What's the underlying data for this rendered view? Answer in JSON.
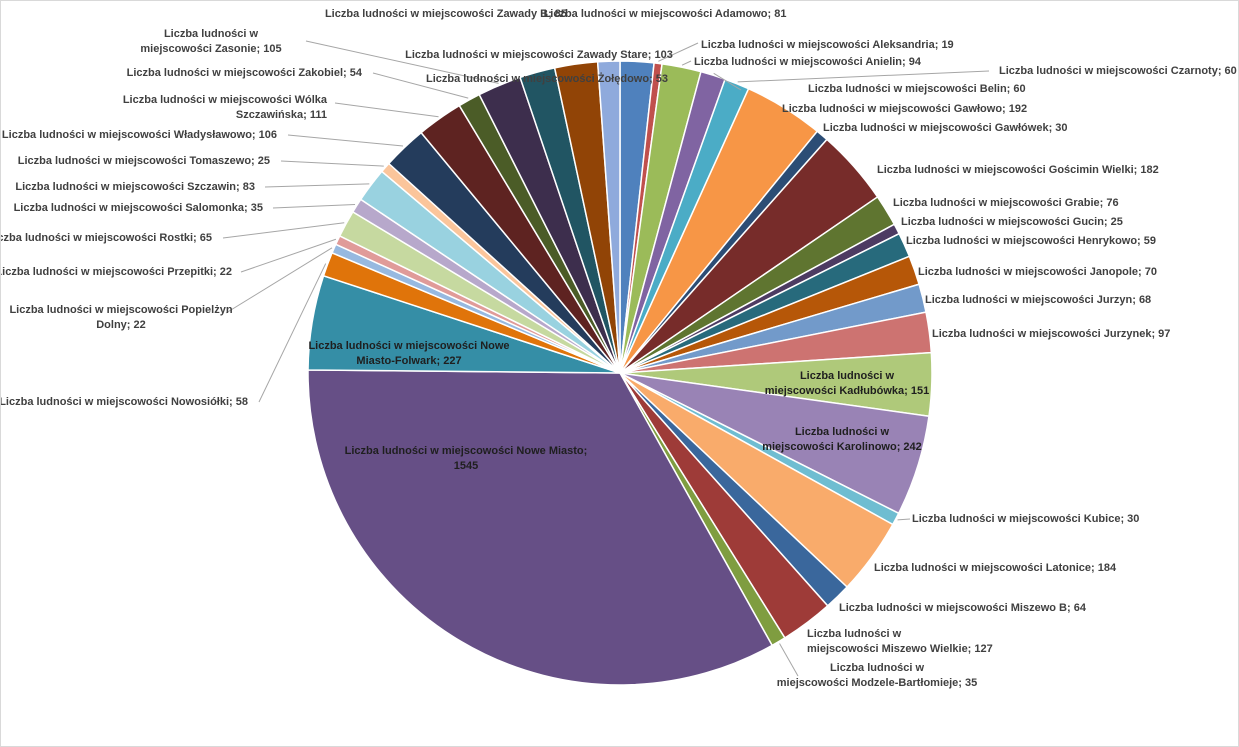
{
  "chart_data": {
    "type": "pie",
    "title": "",
    "legend": "none",
    "label_prefix": "Liczba ludności w miejscowości ",
    "slices": [
      {
        "name": "Adamowo",
        "value": 81,
        "color": "#4F81BD"
      },
      {
        "name": "Aleksandria",
        "value": 19,
        "color": "#C0504D"
      },
      {
        "name": "Anielin",
        "value": 94,
        "color": "#9BBB59"
      },
      {
        "name": "Belin",
        "value": 60,
        "color": "#8064A2"
      },
      {
        "name": "Czarnoty",
        "value": 60,
        "color": "#4BACC6"
      },
      {
        "name": "Gawłowo",
        "value": 192,
        "color": "#F79646"
      },
      {
        "name": "Gawłówek",
        "value": 30,
        "color": "#2C4D75"
      },
      {
        "name": "Gościmin Wielki",
        "value": 182,
        "color": "#772C2A"
      },
      {
        "name": "Grabie",
        "value": 76,
        "color": "#5F7530"
      },
      {
        "name": "Gucin",
        "value": 25,
        "color": "#4D3B62"
      },
      {
        "name": "Henrykowo",
        "value": 59,
        "color": "#276A7C"
      },
      {
        "name": "Janopole",
        "value": 70,
        "color": "#B65708"
      },
      {
        "name": "Jurzyn",
        "value": 68,
        "color": "#729ACA"
      },
      {
        "name": "Jurzynek",
        "value": 97,
        "color": "#CD7371"
      },
      {
        "name": "Kadłubówka",
        "value": 151,
        "color": "#AFC97A"
      },
      {
        "name": "Karolinowo",
        "value": 242,
        "color": "#9983B5"
      },
      {
        "name": "Kubice",
        "value": 30,
        "color": "#6FBDD1"
      },
      {
        "name": "Latonice",
        "value": 184,
        "color": "#F9AB6B"
      },
      {
        "name": "Miszewo B",
        "value": 64,
        "color": "#3A679C"
      },
      {
        "name": "Miszewo Wielkie",
        "value": 127,
        "color": "#9E3B38"
      },
      {
        "name": "Modzele-Bartłomieje",
        "value": 35,
        "color": "#7F9D40"
      },
      {
        "name": "Nowe Miasto",
        "value": 1545,
        "color": "#664F86"
      },
      {
        "name": "Nowe Miasto-Folwark",
        "value": 227,
        "color": "#358EA6"
      },
      {
        "name": "Nowosiółki",
        "value": 58,
        "color": "#E0740A"
      },
      {
        "name": "Popielżyn Dolny",
        "value": 22,
        "color": "#97B9E0"
      },
      {
        "name": "Przepitki",
        "value": 22,
        "color": "#E09B99"
      },
      {
        "name": "Rostki",
        "value": 65,
        "color": "#C6D9A0"
      },
      {
        "name": "Salomonka",
        "value": 35,
        "color": "#B7A8CB"
      },
      {
        "name": "Szczawin",
        "value": 83,
        "color": "#99D2E0"
      },
      {
        "name": "Tomaszewo",
        "value": 25,
        "color": "#FBC59B"
      },
      {
        "name": "Władysławowo",
        "value": 106,
        "color": "#243C5C"
      },
      {
        "name": "Wólka Szczawińska",
        "value": 111,
        "color": "#5E2321"
      },
      {
        "name": "Zakobiel",
        "value": 54,
        "color": "#4B5C27"
      },
      {
        "name": "Zasonie",
        "value": 105,
        "color": "#3D2E4D"
      },
      {
        "name": "Zawady B",
        "value": 85,
        "color": "#215563"
      },
      {
        "name": "Zawady Stare",
        "value": 103,
        "color": "#914406"
      },
      {
        "name": "Żołędowo",
        "value": 53,
        "color": "#8FAADC"
      }
    ]
  }
}
